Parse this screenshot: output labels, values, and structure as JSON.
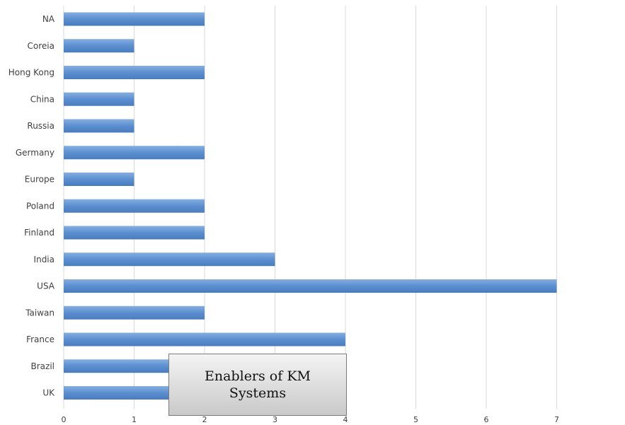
{
  "chart_data": {
    "type": "bar",
    "orientation": "horizontal",
    "categories": [
      "NA",
      "Coreia",
      "Hong Kong",
      "China",
      "Russia",
      "Germany",
      "Europe",
      "Poland",
      "Finland",
      "India",
      "USA",
      "Taiwan",
      "France",
      "Brazil",
      "UK"
    ],
    "values": [
      2,
      1,
      2,
      1,
      1,
      2,
      1,
      2,
      2,
      3,
      7,
      2,
      4,
      2,
      2
    ],
    "xlim": [
      0,
      8
    ],
    "xticks": [
      "0",
      "1",
      "2",
      "3",
      "4",
      "5",
      "6",
      "7",
      "8"
    ],
    "grid": true,
    "legend": "none",
    "bar_color": "#5b8fd0",
    "annotation": "Enablers of KM Systems"
  }
}
